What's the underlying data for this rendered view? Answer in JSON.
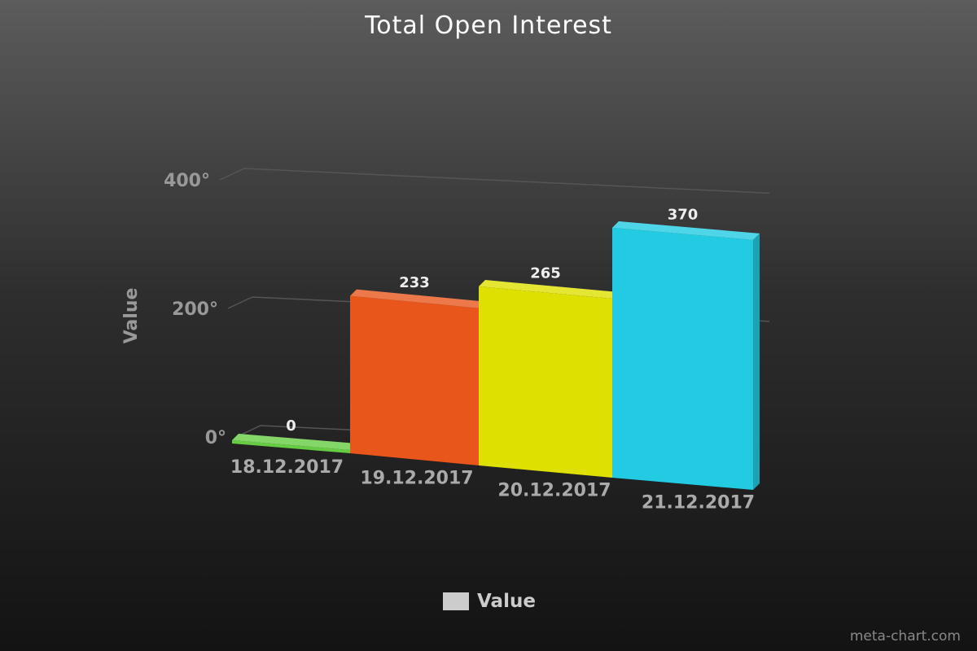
{
  "chart_data": {
    "type": "bar",
    "title": "Total Open Interest",
    "ylabel": "Value",
    "xlabel": "",
    "categories": [
      "18.12.2017",
      "19.12.2017",
      "20.12.2017",
      "21.12.2017"
    ],
    "values": [
      0,
      233,
      265,
      370
    ],
    "bar_colors": [
      "#66cc44",
      "#e8561b",
      "#dde000",
      "#22cbe2"
    ],
    "y_ticks": [
      "0°",
      "200°",
      "400°"
    ],
    "y_tick_values": [
      0,
      200,
      400
    ],
    "ylim": [
      0,
      400
    ],
    "grid": true,
    "legend": {
      "position": "bottom",
      "entries": [
        "Value"
      ],
      "color": "#cccccc"
    },
    "style": "3d"
  },
  "credit": "meta-chart.com"
}
